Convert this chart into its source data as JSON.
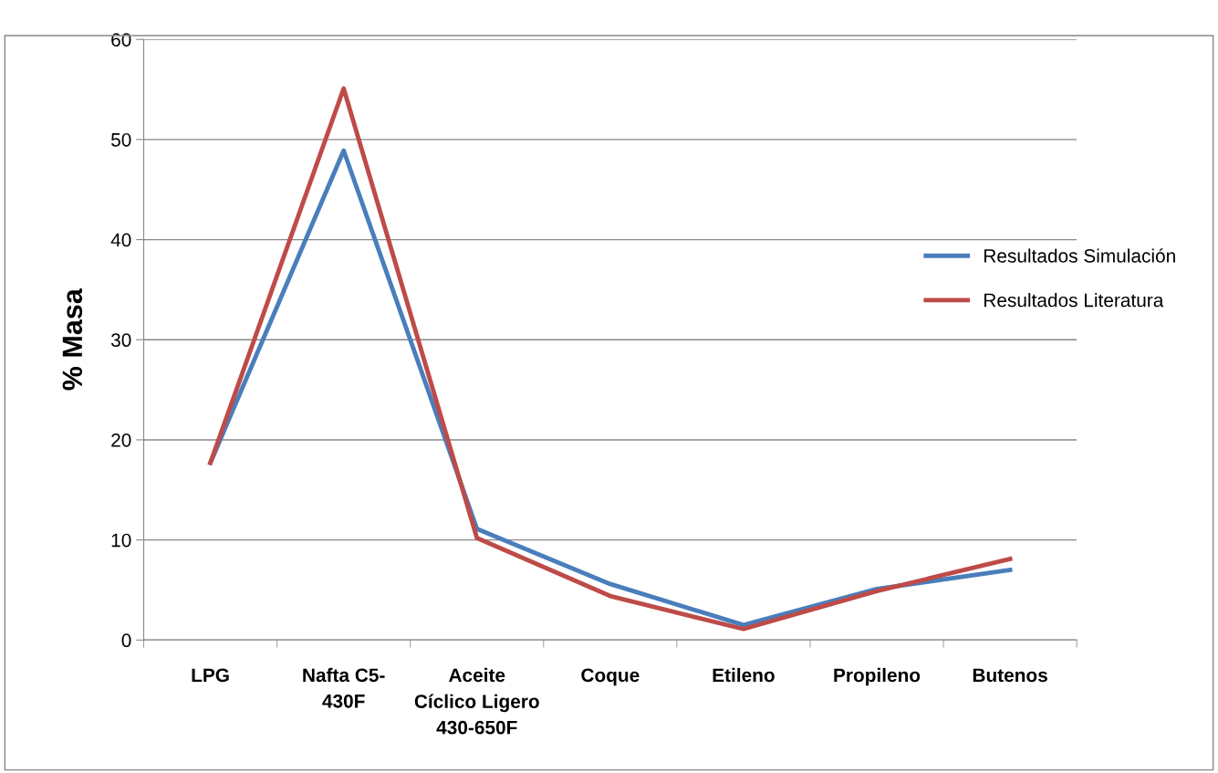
{
  "chart_data": {
    "type": "line",
    "ylabel": "% Masa",
    "categories": [
      "LPG",
      "Nafta C5-\n430F",
      "Aceite\nCíclico Ligero\n430-650F",
      "Coque",
      "Etileno",
      "Propileno",
      "Butenos"
    ],
    "series": [
      {
        "name": "Resultados Simulación",
        "color": "#4a7ebb",
        "values": [
          17.7,
          48.9,
          11.1,
          5.6,
          1.5,
          5.1,
          7.0
        ]
      },
      {
        "name": "Resultados Literatura",
        "color": "#be4b48",
        "values": [
          17.7,
          55.1,
          10.2,
          4.4,
          1.1,
          4.9,
          8.1
        ]
      }
    ],
    "ylim": [
      0,
      60
    ],
    "yticks": [
      0,
      10,
      20,
      30,
      40,
      50,
      60
    ],
    "grid": "y",
    "legend": "right",
    "marker": "none",
    "line_style": "solid"
  }
}
